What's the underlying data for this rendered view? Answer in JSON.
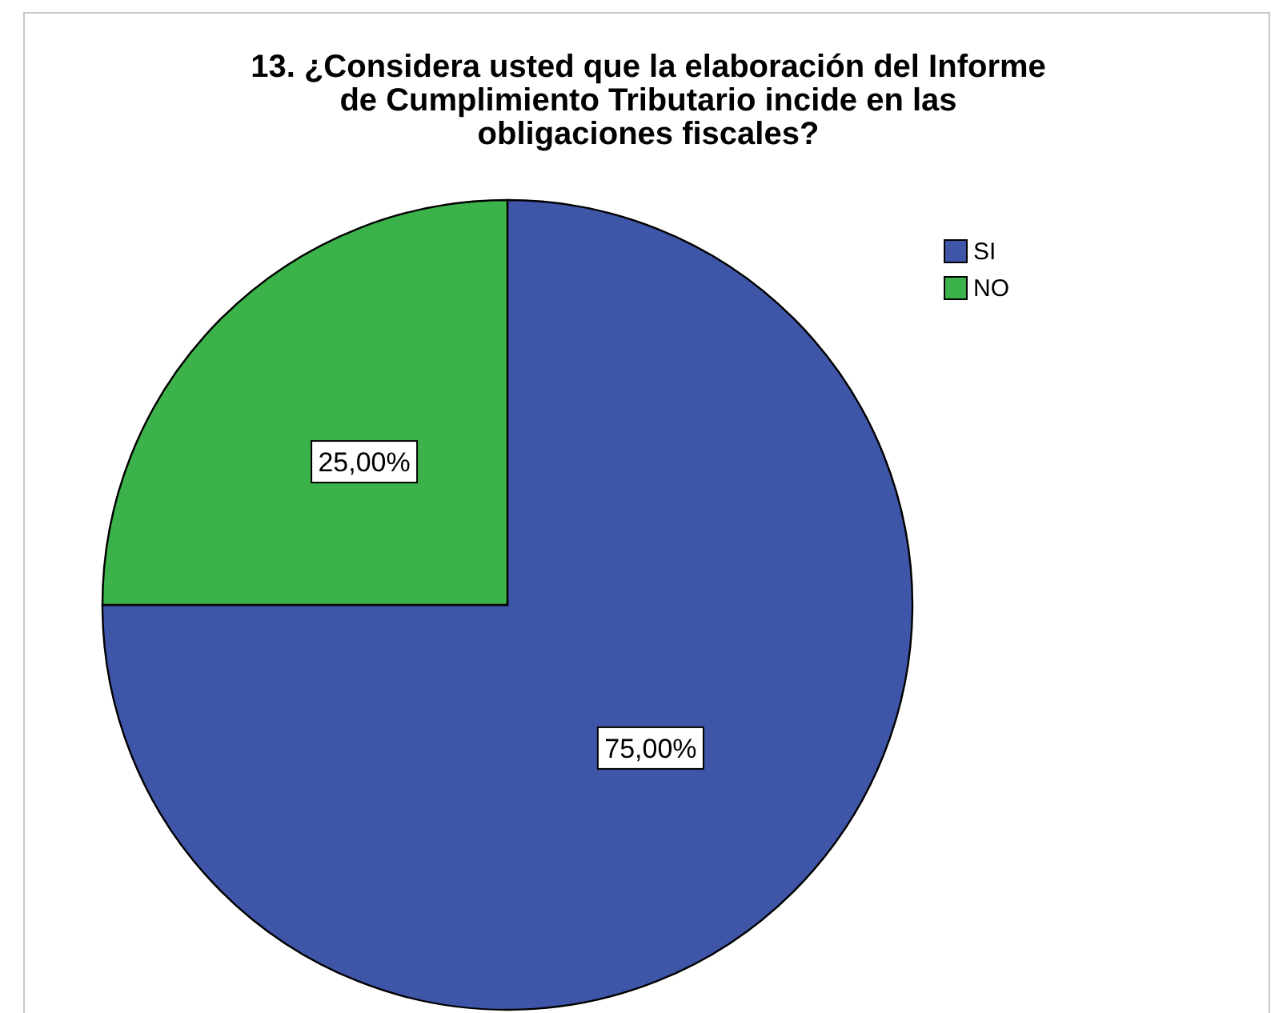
{
  "chart_data": {
    "type": "pie",
    "title": "13. ¿Considera usted que la elaboración del Informe de Cumplimiento Tributario incide en las obligaciones fiscales?",
    "categories": [
      "SI",
      "NO"
    ],
    "values": [
      75,
      25
    ],
    "colors": [
      "#3f56a8",
      "#3bb34a"
    ],
    "value_labels": [
      "75,00%",
      "25,00%"
    ],
    "legend": "top right"
  }
}
